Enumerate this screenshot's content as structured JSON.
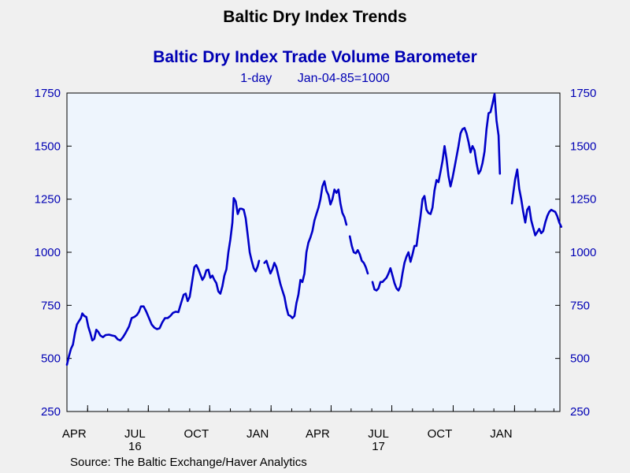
{
  "chart_data": {
    "type": "line",
    "title": "Baltic Dry Index Trends",
    "subtitle": "Baltic Dry Index Trade Volume Barometer",
    "frequency": "1-day",
    "base": "Jan-04-85=1000",
    "source": "Source:  The Baltic Exchange/Haver Analytics",
    "ylim": [
      250,
      1750
    ],
    "yticks": [
      250,
      500,
      750,
      1000,
      1250,
      1500,
      1750
    ],
    "y_axis_sides": [
      "left",
      "right"
    ],
    "x_range": [
      "2016-03-01",
      "2018-03-10"
    ],
    "x_ticks": [
      {
        "date": "2016-04-01",
        "label": "APR",
        "year": ""
      },
      {
        "date": "2016-07-01",
        "label": "JUL",
        "year": "16"
      },
      {
        "date": "2016-10-01",
        "label": "OCT",
        "year": ""
      },
      {
        "date": "2017-01-01",
        "label": "JAN",
        "year": ""
      },
      {
        "date": "2017-04-01",
        "label": "APR",
        "year": ""
      },
      {
        "date": "2017-07-01",
        "label": "JUL",
        "year": "17"
      },
      {
        "date": "2017-10-01",
        "label": "OCT",
        "year": ""
      },
      {
        "date": "2018-01-01",
        "label": "JAN",
        "year": ""
      }
    ],
    "grid": false,
    "colors": {
      "line": "#0000c8",
      "plot_bg": "#eef5fd",
      "page_bg": "#f0f0f0",
      "axis_text": "#0000b4"
    },
    "series": [
      {
        "name": "",
        "segments": [
          [
            [
              "2016-03-01",
              470
            ],
            [
              "2016-03-04",
              510
            ],
            [
              "2016-03-07",
              545
            ],
            [
              "2016-03-10",
              565
            ],
            [
              "2016-03-13",
              620
            ],
            [
              "2016-03-16",
              660
            ],
            [
              "2016-03-19",
              675
            ],
            [
              "2016-03-22",
              690
            ],
            [
              "2016-03-24",
              712
            ],
            [
              "2016-03-27",
              700
            ],
            [
              "2016-03-30",
              695
            ],
            [
              "2016-04-02",
              650
            ],
            [
              "2016-04-05",
              620
            ],
            [
              "2016-04-08",
              585
            ],
            [
              "2016-04-11",
              592
            ],
            [
              "2016-04-14",
              635
            ],
            [
              "2016-04-17",
              625
            ],
            [
              "2016-04-20",
              608
            ],
            [
              "2016-04-24",
              600
            ],
            [
              "2016-04-28",
              610
            ],
            [
              "2016-05-03",
              612
            ],
            [
              "2016-05-08",
              608
            ],
            [
              "2016-05-12",
              605
            ],
            [
              "2016-05-16",
              590
            ],
            [
              "2016-05-20",
              585
            ],
            [
              "2016-05-24",
              600
            ],
            [
              "2016-05-28",
              620
            ],
            [
              "2016-06-02",
              650
            ],
            [
              "2016-06-06",
              690
            ],
            [
              "2016-06-10",
              695
            ],
            [
              "2016-06-14",
              705
            ],
            [
              "2016-06-17",
              720
            ],
            [
              "2016-06-20",
              745
            ],
            [
              "2016-06-24",
              745
            ],
            [
              "2016-06-28",
              720
            ],
            [
              "2016-07-02",
              690
            ],
            [
              "2016-07-06",
              660
            ],
            [
              "2016-07-10",
              645
            ],
            [
              "2016-07-14",
              638
            ],
            [
              "2016-07-18",
              642
            ],
            [
              "2016-07-22",
              670
            ],
            [
              "2016-07-26",
              690
            ],
            [
              "2016-07-30",
              690
            ],
            [
              "2016-08-03",
              700
            ],
            [
              "2016-08-07",
              715
            ],
            [
              "2016-08-11",
              720
            ],
            [
              "2016-08-15",
              718
            ],
            [
              "2016-08-19",
              760
            ],
            [
              "2016-08-23",
              800
            ],
            [
              "2016-08-26",
              805
            ],
            [
              "2016-08-29",
              770
            ],
            [
              "2016-09-01",
              790
            ],
            [
              "2016-09-05",
              870
            ],
            [
              "2016-09-08",
              930
            ],
            [
              "2016-09-11",
              940
            ],
            [
              "2016-09-14",
              920
            ],
            [
              "2016-09-17",
              895
            ],
            [
              "2016-09-20",
              870
            ],
            [
              "2016-09-23",
              885
            ],
            [
              "2016-09-26",
              915
            ],
            [
              "2016-09-29",
              918
            ],
            [
              "2016-10-02",
              880
            ],
            [
              "2016-10-05",
              890
            ],
            [
              "2016-10-08",
              870
            ],
            [
              "2016-10-11",
              855
            ],
            [
              "2016-10-14",
              815
            ],
            [
              "2016-10-17",
              805
            ],
            [
              "2016-10-20",
              840
            ],
            [
              "2016-10-23",
              890
            ],
            [
              "2016-10-26",
              920
            ],
            [
              "2016-10-29",
              1000
            ],
            [
              "2016-11-01",
              1060
            ],
            [
              "2016-11-04",
              1140
            ],
            [
              "2016-11-06",
              1255
            ],
            [
              "2016-11-09",
              1240
            ],
            [
              "2016-11-12",
              1180
            ],
            [
              "2016-11-15",
              1205
            ],
            [
              "2016-11-18",
              1205
            ],
            [
              "2016-11-21",
              1200
            ],
            [
              "2016-11-24",
              1160
            ],
            [
              "2016-11-27",
              1080
            ],
            [
              "2016-11-30",
              1000
            ],
            [
              "2016-12-03",
              960
            ],
            [
              "2016-12-06",
              925
            ],
            [
              "2016-12-09",
              910
            ],
            [
              "2016-12-12",
              935
            ],
            [
              "2016-12-14",
              960
            ]
          ],
          [
            [
              "2016-12-22",
              950
            ],
            [
              "2016-12-25",
              960
            ],
            [
              "2016-12-28",
              930
            ],
            [
              "2016-12-31",
              900
            ],
            [
              "2017-01-03",
              920
            ],
            [
              "2017-01-06",
              950
            ],
            [
              "2017-01-09",
              930
            ],
            [
              "2017-01-12",
              890
            ],
            [
              "2017-01-15",
              850
            ],
            [
              "2017-01-18",
              820
            ],
            [
              "2017-01-21",
              790
            ],
            [
              "2017-01-24",
              740
            ],
            [
              "2017-01-27",
              705
            ],
            [
              "2017-01-30",
              700
            ],
            [
              "2017-02-02",
              690
            ],
            [
              "2017-02-05",
              700
            ],
            [
              "2017-02-08",
              760
            ],
            [
              "2017-02-11",
              800
            ],
            [
              "2017-02-14",
              870
            ],
            [
              "2017-02-17",
              860
            ],
            [
              "2017-02-20",
              900
            ],
            [
              "2017-02-23",
              1000
            ],
            [
              "2017-02-26",
              1045
            ],
            [
              "2017-03-01",
              1070
            ],
            [
              "2017-03-04",
              1100
            ],
            [
              "2017-03-07",
              1150
            ],
            [
              "2017-03-10",
              1180
            ],
            [
              "2017-03-13",
              1210
            ],
            [
              "2017-03-16",
              1250
            ],
            [
              "2017-03-19",
              1310
            ],
            [
              "2017-03-22",
              1335
            ],
            [
              "2017-03-25",
              1290
            ],
            [
              "2017-03-28",
              1270
            ],
            [
              "2017-03-31",
              1225
            ],
            [
              "2017-04-03",
              1250
            ],
            [
              "2017-04-06",
              1295
            ],
            [
              "2017-04-09",
              1280
            ],
            [
              "2017-04-12",
              1295
            ],
            [
              "2017-04-15",
              1230
            ],
            [
              "2017-04-18",
              1185
            ],
            [
              "2017-04-21",
              1165
            ],
            [
              "2017-04-24",
              1130
            ]
          ],
          [
            [
              "2017-04-29",
              1075
            ],
            [
              "2017-05-02",
              1030
            ],
            [
              "2017-05-05",
              1000
            ],
            [
              "2017-05-08",
              995
            ],
            [
              "2017-05-11",
              1010
            ],
            [
              "2017-05-14",
              990
            ],
            [
              "2017-05-17",
              960
            ],
            [
              "2017-05-20",
              950
            ],
            [
              "2017-05-23",
              930
            ],
            [
              "2017-05-26",
              900
            ]
          ],
          [
            [
              "2017-06-02",
              860
            ],
            [
              "2017-06-05",
              825
            ],
            [
              "2017-06-08",
              820
            ],
            [
              "2017-06-11",
              830
            ],
            [
              "2017-06-14",
              860
            ],
            [
              "2017-06-17",
              860
            ],
            [
              "2017-06-20",
              870
            ],
            [
              "2017-06-23",
              880
            ],
            [
              "2017-06-26",
              900
            ],
            [
              "2017-06-29",
              925
            ],
            [
              "2017-07-02",
              890
            ],
            [
              "2017-07-05",
              855
            ],
            [
              "2017-07-08",
              830
            ],
            [
              "2017-07-11",
              820
            ],
            [
              "2017-07-14",
              840
            ],
            [
              "2017-07-17",
              900
            ],
            [
              "2017-07-20",
              950
            ],
            [
              "2017-07-23",
              980
            ],
            [
              "2017-07-26",
              1000
            ],
            [
              "2017-07-29",
              955
            ],
            [
              "2017-08-01",
              990
            ],
            [
              "2017-08-04",
              1030
            ],
            [
              "2017-08-07",
              1030
            ],
            [
              "2017-08-10",
              1100
            ],
            [
              "2017-08-13",
              1170
            ],
            [
              "2017-08-16",
              1250
            ],
            [
              "2017-08-19",
              1265
            ],
            [
              "2017-08-22",
              1200
            ],
            [
              "2017-08-25",
              1185
            ],
            [
              "2017-08-28",
              1180
            ],
            [
              "2017-08-31",
              1210
            ],
            [
              "2017-09-03",
              1290
            ],
            [
              "2017-09-06",
              1340
            ],
            [
              "2017-09-09",
              1330
            ],
            [
              "2017-09-12",
              1380
            ],
            [
              "2017-09-15",
              1430
            ],
            [
              "2017-09-18",
              1500
            ],
            [
              "2017-09-21",
              1440
            ],
            [
              "2017-09-24",
              1360
            ],
            [
              "2017-09-27",
              1310
            ],
            [
              "2017-09-30",
              1350
            ],
            [
              "2017-10-03",
              1400
            ],
            [
              "2017-10-06",
              1450
            ],
            [
              "2017-10-09",
              1500
            ],
            [
              "2017-10-12",
              1560
            ],
            [
              "2017-10-15",
              1580
            ],
            [
              "2017-10-18",
              1585
            ],
            [
              "2017-10-21",
              1560
            ],
            [
              "2017-10-24",
              1520
            ],
            [
              "2017-10-27",
              1470
            ],
            [
              "2017-10-30",
              1500
            ],
            [
              "2017-11-02",
              1480
            ],
            [
              "2017-11-05",
              1420
            ],
            [
              "2017-11-08",
              1370
            ],
            [
              "2017-11-11",
              1385
            ],
            [
              "2017-11-14",
              1420
            ],
            [
              "2017-11-17",
              1475
            ],
            [
              "2017-11-20",
              1580
            ],
            [
              "2017-11-23",
              1655
            ],
            [
              "2017-11-26",
              1660
            ],
            [
              "2017-11-29",
              1700
            ],
            [
              "2017-12-02",
              1745
            ],
            [
              "2017-12-05",
              1620
            ],
            [
              "2017-12-08",
              1550
            ],
            [
              "2017-12-10",
              1370
            ]
          ],
          [
            [
              "2017-12-28",
              1230
            ],
            [
              "2018-01-02",
              1345
            ],
            [
              "2018-01-05",
              1390
            ],
            [
              "2018-01-08",
              1300
            ],
            [
              "2018-01-11",
              1250
            ],
            [
              "2018-01-14",
              1190
            ],
            [
              "2018-01-17",
              1140
            ],
            [
              "2018-01-20",
              1200
            ],
            [
              "2018-01-23",
              1215
            ],
            [
              "2018-01-26",
              1150
            ],
            [
              "2018-01-29",
              1115
            ],
            [
              "2018-02-01",
              1080
            ],
            [
              "2018-02-04",
              1095
            ],
            [
              "2018-02-07",
              1110
            ],
            [
              "2018-02-10",
              1090
            ],
            [
              "2018-02-13",
              1100
            ],
            [
              "2018-02-16",
              1140
            ],
            [
              "2018-02-19",
              1170
            ],
            [
              "2018-02-22",
              1190
            ],
            [
              "2018-02-25",
              1200
            ],
            [
              "2018-02-28",
              1195
            ],
            [
              "2018-03-03",
              1190
            ],
            [
              "2018-03-06",
              1170
            ],
            [
              "2018-03-09",
              1140
            ],
            [
              "2018-03-12",
              1120
            ]
          ]
        ]
      }
    ]
  }
}
